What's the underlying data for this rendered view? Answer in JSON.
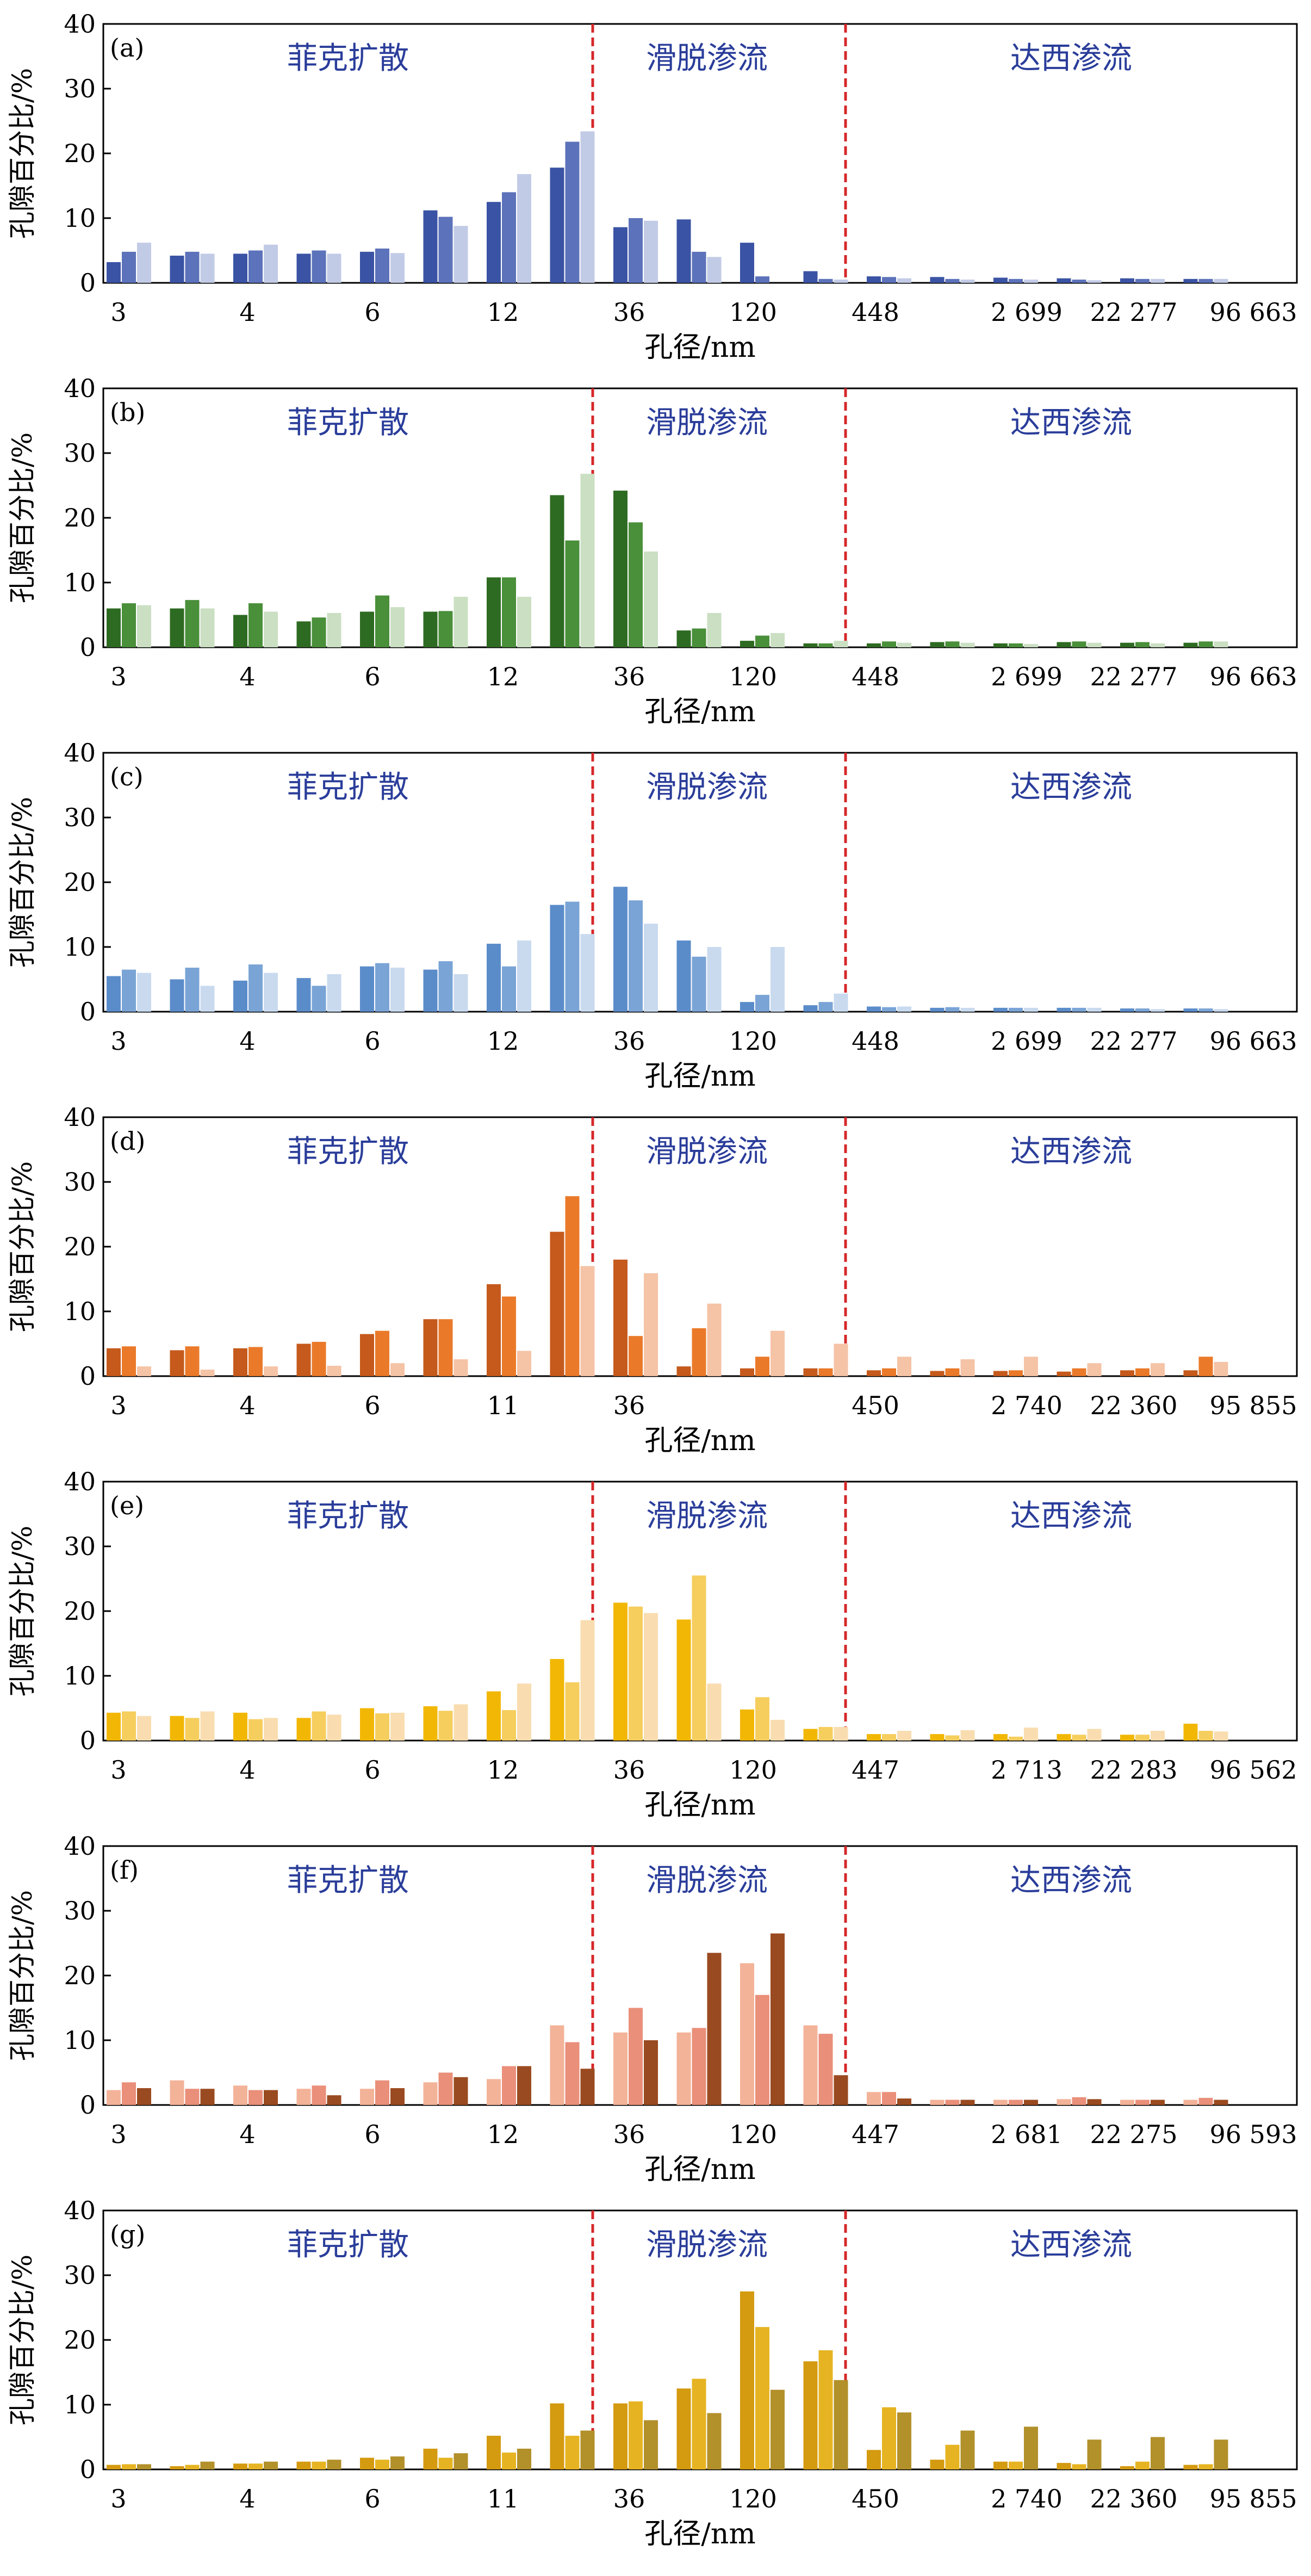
{
  "chart_data": [
    {
      "type": "bar",
      "panel_label": "(a)",
      "regions": [
        "菲克扩散",
        "滑脱渗流",
        "达西渗流"
      ],
      "tick_labels": [
        "3",
        "4",
        "6",
        "12",
        "36",
        "120",
        "448",
        "2 699",
        "22 277",
        "96 663"
      ],
      "xlabel": "孔径/nm",
      "ylabel": "孔隙百分比/%",
      "ylim": [
        0,
        40
      ],
      "yticks": [
        0,
        10,
        20,
        30,
        40
      ],
      "colors": [
        "#3a53a4",
        "#5c72ba",
        "#c2cbe6"
      ],
      "series": [
        {
          "values": [
            3.2,
            4.2,
            4.5,
            4.5,
            4.8,
            11.2,
            12.5,
            17.8,
            8.6,
            9.8,
            6.2,
            1.8,
            1.0,
            0.9,
            0.8,
            0.7,
            0.7,
            0.6
          ]
        },
        {
          "values": [
            4.8,
            4.8,
            5.0,
            5.0,
            5.3,
            10.2,
            14.0,
            21.8,
            10.0,
            4.8,
            1.0,
            0.6,
            0.9,
            0.6,
            0.6,
            0.5,
            0.6,
            0.6
          ]
        },
        {
          "values": [
            6.2,
            4.5,
            5.9,
            4.5,
            4.6,
            8.8,
            16.8,
            23.4,
            9.6,
            4.0,
            0.0,
            0.5,
            0.7,
            0.5,
            0.5,
            0.4,
            0.6,
            0.6
          ]
        }
      ]
    },
    {
      "type": "bar",
      "panel_label": "(b)",
      "regions": [
        "菲克扩散",
        "滑脱渗流",
        "达西渗流"
      ],
      "tick_labels": [
        "3",
        "4",
        "6",
        "12",
        "36",
        "120",
        "448",
        "2 699",
        "22 277",
        "96 663"
      ],
      "xlabel": "孔径/nm",
      "ylabel": "孔隙百分比/%",
      "ylim": [
        0,
        40
      ],
      "yticks": [
        0,
        10,
        20,
        30,
        40
      ],
      "colors": [
        "#2e6b22",
        "#4a8f3a",
        "#cbdfc3"
      ],
      "series": [
        {
          "values": [
            6.0,
            6.0,
            5.0,
            4.0,
            5.5,
            5.5,
            10.8,
            23.5,
            24.2,
            2.6,
            1.0,
            0.6,
            0.6,
            0.8,
            0.6,
            0.8,
            0.7,
            0.7
          ]
        },
        {
          "values": [
            6.8,
            7.3,
            6.8,
            4.6,
            8.0,
            5.6,
            10.8,
            16.5,
            19.3,
            2.9,
            1.8,
            0.6,
            0.9,
            0.9,
            0.6,
            0.9,
            0.8,
            0.9
          ]
        },
        {
          "values": [
            6.5,
            6.0,
            5.5,
            5.3,
            6.2,
            7.8,
            7.8,
            26.8,
            14.8,
            5.3,
            2.2,
            1.0,
            0.7,
            0.7,
            0.5,
            0.7,
            0.6,
            0.9
          ]
        }
      ]
    },
    {
      "type": "bar",
      "panel_label": "(c)",
      "regions": [
        "菲克扩散",
        "滑脱渗流",
        "达西渗流"
      ],
      "tick_labels": [
        "3",
        "4",
        "6",
        "12",
        "36",
        "120",
        "448",
        "2 699",
        "22 277",
        "96 663"
      ],
      "xlabel": "孔径/nm",
      "ylabel": "孔隙百分比/%",
      "ylim": [
        0,
        40
      ],
      "yticks": [
        0,
        10,
        20,
        30,
        40
      ],
      "colors": [
        "#5b8cca",
        "#7aa4d6",
        "#c9daef"
      ],
      "series": [
        {
          "values": [
            5.5,
            5.0,
            4.8,
            5.2,
            7.0,
            6.5,
            10.5,
            16.5,
            19.3,
            11.0,
            1.5,
            1.0,
            0.8,
            0.6,
            0.6,
            0.6,
            0.5,
            0.5
          ]
        },
        {
          "values": [
            6.5,
            6.8,
            7.3,
            4.0,
            7.5,
            7.8,
            7.0,
            17.0,
            17.2,
            8.5,
            2.6,
            1.5,
            0.7,
            0.7,
            0.6,
            0.6,
            0.5,
            0.5
          ]
        },
        {
          "values": [
            6.0,
            4.0,
            6.0,
            5.8,
            6.8,
            5.8,
            11.0,
            12.0,
            13.6,
            10.0,
            10.0,
            2.8,
            0.8,
            0.6,
            0.6,
            0.6,
            0.4,
            0.4
          ]
        }
      ]
    },
    {
      "type": "bar",
      "panel_label": "(d)",
      "regions": [
        "菲克扩散",
        "滑脱渗流",
        "达西渗流"
      ],
      "tick_labels": [
        "3",
        "4",
        "6",
        "11",
        "36",
        "450",
        "2 740",
        "22 360",
        "95 855"
      ],
      "xlabel": "孔径/nm",
      "ylabel": "孔隙百分比/%",
      "ylim": [
        0,
        40
      ],
      "yticks": [
        0,
        10,
        20,
        30,
        40
      ],
      "colors": [
        "#c55a1c",
        "#ea7a2a",
        "#f5c3a6"
      ],
      "series": [
        {
          "values": [
            4.3,
            4.0,
            4.3,
            5.0,
            6.5,
            8.8,
            14.2,
            22.3,
            18.0,
            1.5,
            1.2,
            1.2,
            0.9,
            0.8,
            0.8,
            0.7,
            0.9,
            0.9
          ]
        },
        {
          "values": [
            4.6,
            4.6,
            4.5,
            5.3,
            7.0,
            8.8,
            12.3,
            27.8,
            6.2,
            7.4,
            3.0,
            1.2,
            1.2,
            1.2,
            0.9,
            1.2,
            1.2,
            3.0
          ]
        },
        {
          "values": [
            1.5,
            1.0,
            1.5,
            1.6,
            2.0,
            2.6,
            3.9,
            17.0,
            15.9,
            11.2,
            7.0,
            5.0,
            3.0,
            2.6,
            3.0,
            2.0,
            2.0,
            2.2
          ]
        }
      ]
    },
    {
      "type": "bar",
      "panel_label": "(e)",
      "regions": [
        "菲克扩散",
        "滑脱渗流",
        "达西渗流"
      ],
      "tick_labels": [
        "3",
        "4",
        "6",
        "12",
        "36",
        "120",
        "447",
        "2 713",
        "22 283",
        "96 562"
      ],
      "xlabel": "孔径/nm",
      "ylabel": "孔隙百分比/%",
      "ylim": [
        0,
        40
      ],
      "yticks": [
        0,
        10,
        20,
        30,
        40
      ],
      "colors": [
        "#f2b705",
        "#f6ce5e",
        "#f9ddb0"
      ],
      "series": [
        {
          "values": [
            4.3,
            3.8,
            4.3,
            3.5,
            5.0,
            5.3,
            7.6,
            12.6,
            21.3,
            18.7,
            4.8,
            1.8,
            1.0,
            1.0,
            1.0,
            1.0,
            0.9,
            2.6
          ]
        },
        {
          "values": [
            4.5,
            3.5,
            3.3,
            4.5,
            4.2,
            4.6,
            4.7,
            9.0,
            20.7,
            25.5,
            6.7,
            2.1,
            1.0,
            0.8,
            0.6,
            0.9,
            0.9,
            1.5
          ]
        },
        {
          "values": [
            3.8,
            4.5,
            3.5,
            4.0,
            4.3,
            5.6,
            8.8,
            18.6,
            19.7,
            8.8,
            3.2,
            2.1,
            1.5,
            1.6,
            2.0,
            1.8,
            1.5,
            1.4
          ]
        }
      ]
    },
    {
      "type": "bar",
      "panel_label": "(f)",
      "regions": [
        "菲克扩散",
        "滑脱渗流",
        "达西渗流"
      ],
      "tick_labels": [
        "3",
        "4",
        "6",
        "12",
        "36",
        "120",
        "447",
        "2 681",
        "22 275",
        "96 593"
      ],
      "xlabel": "孔径/nm",
      "ylabel": "孔隙百分比/%",
      "ylim": [
        0,
        40
      ],
      "yticks": [
        0,
        10,
        20,
        30,
        40
      ],
      "colors": [
        "#f3b399",
        "#ea8f7a",
        "#9a4a20"
      ],
      "series": [
        {
          "values": [
            2.3,
            3.8,
            3.0,
            2.5,
            2.5,
            3.5,
            4.0,
            12.3,
            11.2,
            11.2,
            21.9,
            12.3,
            2.0,
            0.8,
            0.8,
            0.9,
            0.8,
            0.8
          ]
        },
        {
          "values": [
            3.5,
            2.5,
            2.3,
            3.0,
            3.8,
            5.0,
            6.0,
            9.7,
            15.0,
            11.9,
            17.0,
            11.0,
            2.0,
            0.8,
            0.8,
            1.2,
            0.8,
            1.1
          ]
        },
        {
          "values": [
            2.6,
            2.5,
            2.3,
            1.5,
            2.6,
            4.3,
            6.0,
            5.6,
            10.0,
            23.5,
            26.5,
            4.6,
            1.0,
            0.8,
            0.8,
            0.9,
            0.8,
            0.8
          ]
        }
      ]
    },
    {
      "type": "bar",
      "panel_label": "(g)",
      "regions": [
        "菲克扩散",
        "滑脱渗流",
        "达西渗流"
      ],
      "tick_labels": [
        "3",
        "4",
        "6",
        "11",
        "36",
        "120",
        "450",
        "2 740",
        "22 360",
        "95 855"
      ],
      "xlabel": "孔径/nm",
      "ylabel": "孔隙百分比/%",
      "ylim": [
        0,
        40
      ],
      "yticks": [
        0,
        10,
        20,
        30,
        40
      ],
      "colors": [
        "#d49a10",
        "#e6b422",
        "#b2902a"
      ],
      "series": [
        {
          "values": [
            0.7,
            0.5,
            0.9,
            1.2,
            1.8,
            3.2,
            5.2,
            10.2,
            10.2,
            12.5,
            27.5,
            16.7,
            3.0,
            1.5,
            1.2,
            1.0,
            0.5,
            0.7
          ]
        },
        {
          "values": [
            0.8,
            0.7,
            0.9,
            1.2,
            1.5,
            1.8,
            2.6,
            5.2,
            10.5,
            14.0,
            22.0,
            18.4,
            9.6,
            3.8,
            1.2,
            0.8,
            1.2,
            0.8
          ]
        },
        {
          "values": [
            0.8,
            1.2,
            1.2,
            1.5,
            2.0,
            2.5,
            3.2,
            6.0,
            7.6,
            8.7,
            12.3,
            13.8,
            8.8,
            6.0,
            6.6,
            4.6,
            5.0,
            4.6
          ]
        }
      ]
    }
  ]
}
